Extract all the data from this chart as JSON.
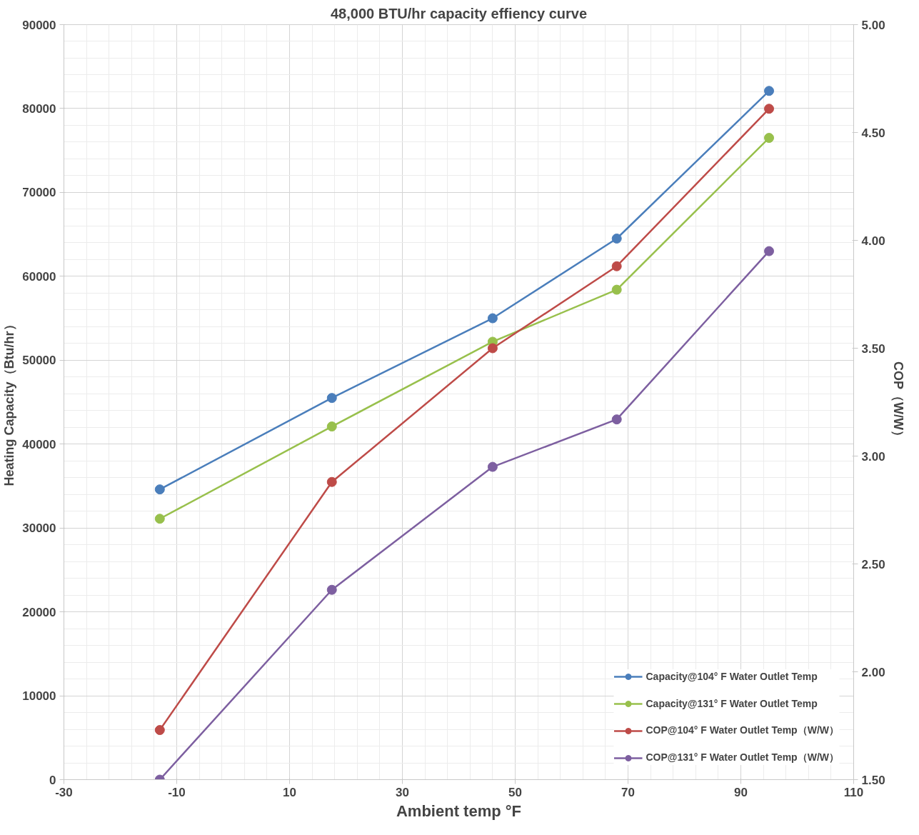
{
  "chart_data": {
    "type": "line",
    "title": "48,000 BTU/hr capacity effiency curve",
    "xlabel": "Ambient temp °F",
    "ylabel": "Heating Capacity（Btu/hr）",
    "y2label": "COP（W/W）",
    "x": [
      -13,
      17.5,
      46,
      68,
      95
    ],
    "xlim": [
      -30,
      110
    ],
    "xticks": [
      -30,
      -10,
      10,
      30,
      50,
      70,
      90,
      110
    ],
    "ylim": [
      0,
      90000
    ],
    "yticks": [
      0,
      10000,
      20000,
      30000,
      40000,
      50000,
      60000,
      70000,
      80000,
      90000
    ],
    "y2lim": [
      1.5,
      5.0
    ],
    "y2ticks": [
      {
        "value": 1.5,
        "label": "1.50"
      },
      {
        "value": 2.0,
        "label": "2.00"
      },
      {
        "value": 2.5,
        "label": "2.50"
      },
      {
        "value": 3.0,
        "label": "3.00"
      },
      {
        "value": 3.5,
        "label": "3.50"
      },
      {
        "value": 4.0,
        "label": "4.00"
      },
      {
        "value": 4.5,
        "label": "4.50"
      },
      {
        "value": 5.0,
        "label": "5.00"
      }
    ],
    "grid": true,
    "legend": "bottom right",
    "marker": "circle",
    "line_style": "solid",
    "series": [
      {
        "name": "Capacity@104° F Water Outlet Temp",
        "color": "#4a7ebb",
        "values": [
          34600,
          45500,
          55000,
          64500,
          82100
        ]
      },
      {
        "name": "Capacity@131° F Water Outlet Temp",
        "color": "#98c04c",
        "values": [
          31100,
          42100,
          52200,
          58400,
          76500
        ]
      },
      {
        "name": "COP@104° F Water Outlet Temp（W/W）",
        "color": "#be4b48",
        "axis": "y2",
        "values": [
          1.73,
          2.88,
          3.5,
          3.88,
          4.61
        ]
      },
      {
        "name": "COP@131° F Water Outlet Temp（W/W）",
        "color": "#7d5fa0",
        "axis": "y2",
        "values": [
          1.5,
          2.38,
          2.95,
          3.17,
          3.95
        ]
      }
    ]
  }
}
